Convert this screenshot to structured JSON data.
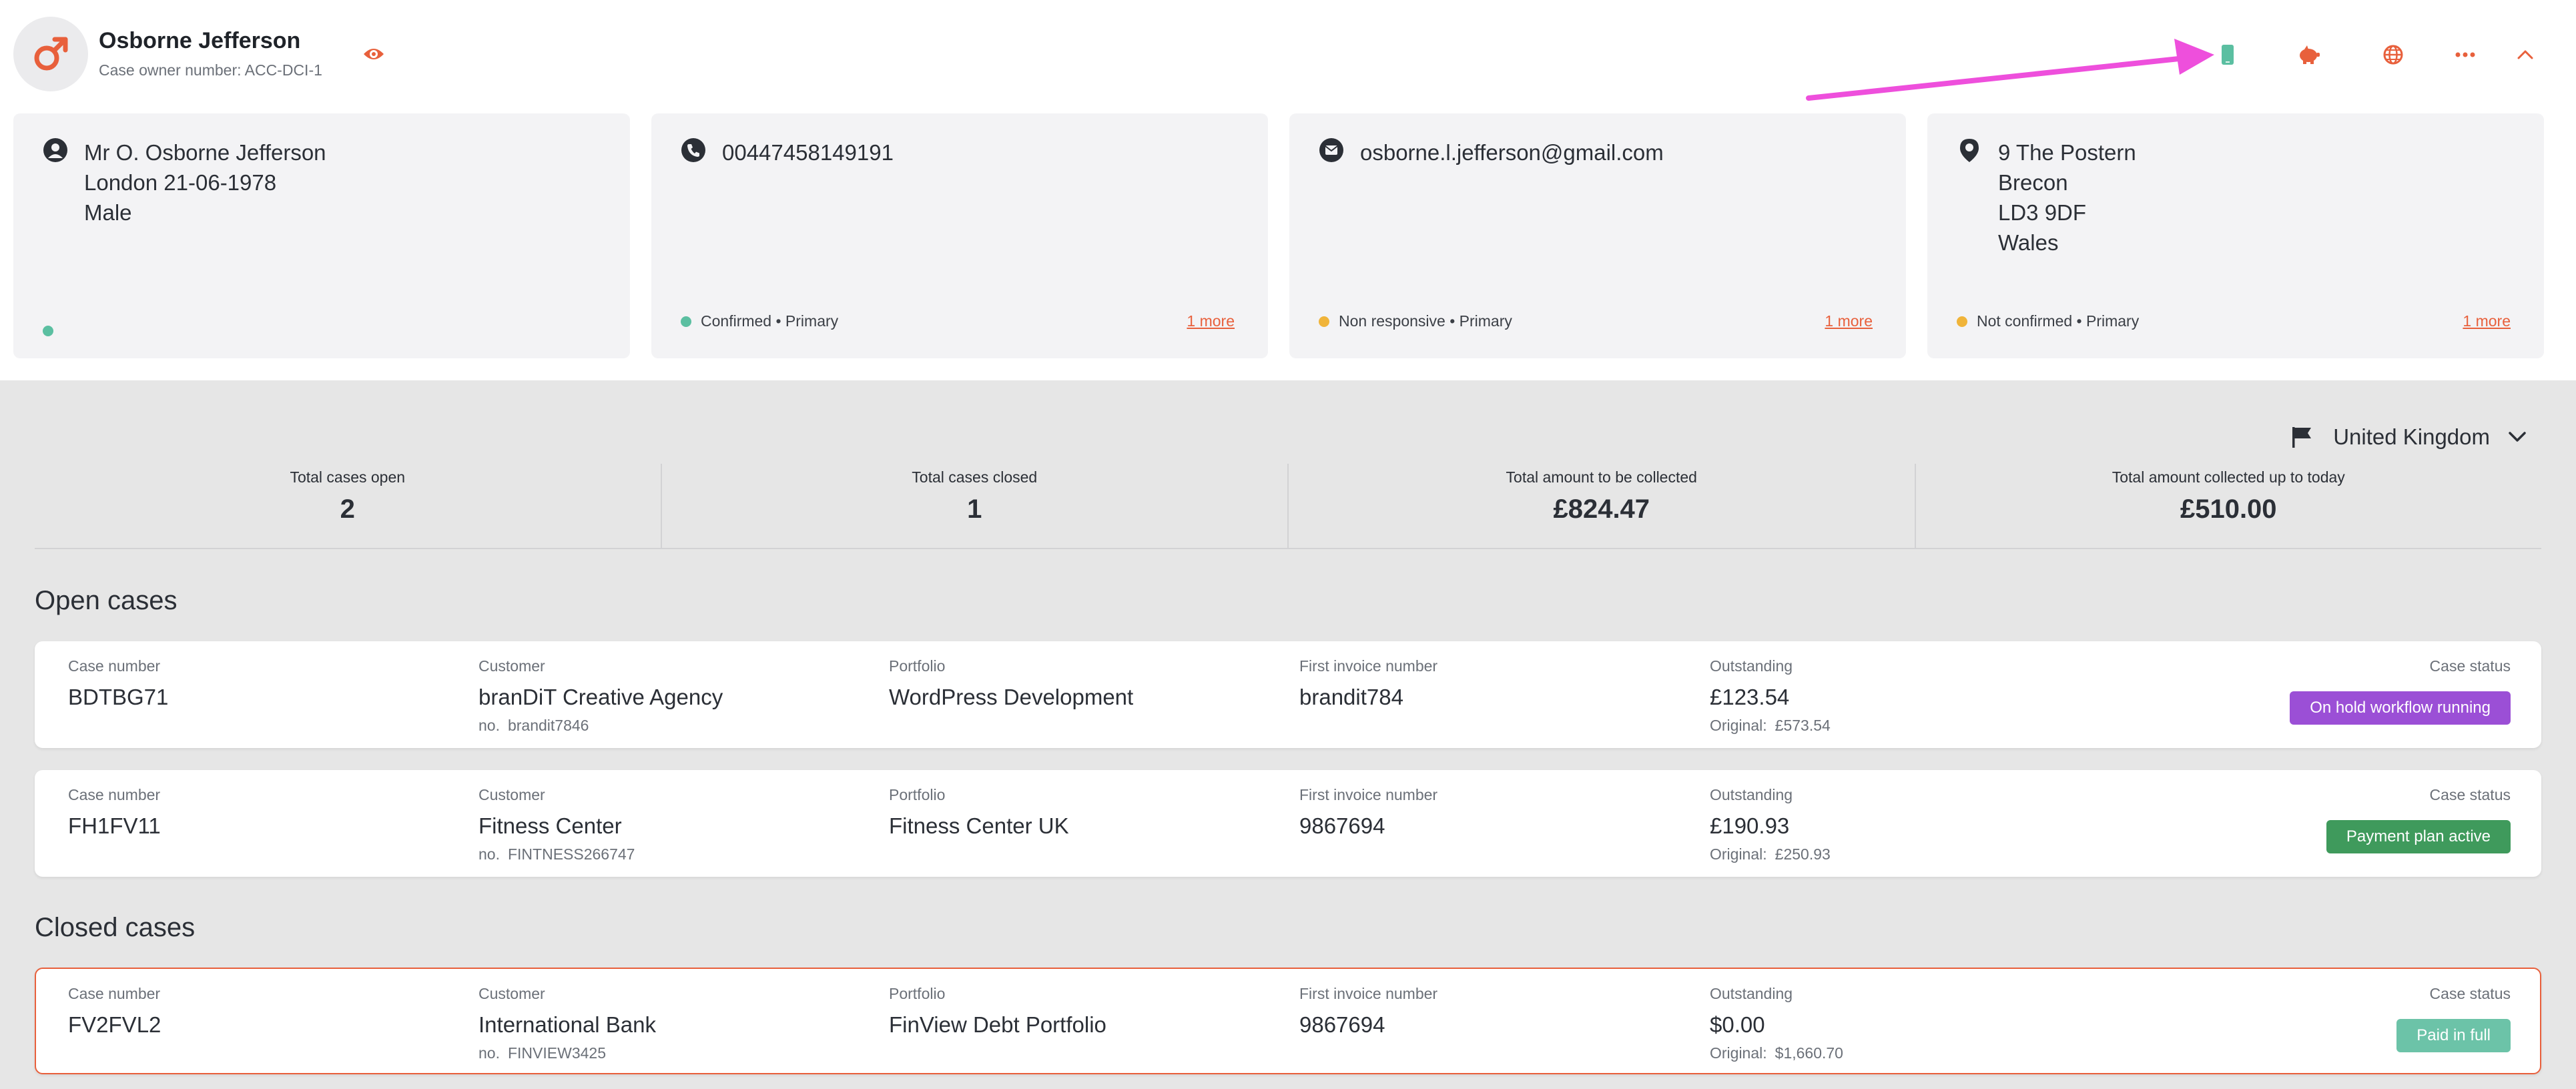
{
  "header": {
    "name": "Osborne Jefferson",
    "owner_number": "Case owner number: ACC-DCI-1",
    "icons": [
      "gender-male-icon",
      "eye-icon",
      "mobile-phone-icon",
      "piggy-bank-icon",
      "globe-icon",
      "more-icon",
      "chevron-up-icon"
    ]
  },
  "cards": {
    "person": {
      "icon": "user-icon",
      "text": "Mr O. Osborne Jefferson\nLondon 21-06-1978\nMale",
      "status_color": "#5bbfa1"
    },
    "phone": {
      "icon": "phone-icon",
      "text": "00447458149191",
      "status": "Confirmed • Primary",
      "status_color": "#5bbfa1",
      "more": "1 more"
    },
    "email": {
      "icon": "mail-icon",
      "text": "osborne.l.jefferson@gmail.com",
      "status": "Non responsive • Primary",
      "status_color": "#f0b43a",
      "more": "1 more"
    },
    "address": {
      "icon": "location-pin-icon",
      "text": "9 The Postern\nBrecon\nLD3 9DF\nWales",
      "status": "Not confirmed • Primary",
      "status_color": "#f0b43a",
      "more": "1 more"
    }
  },
  "country": {
    "label": "United Kingdom",
    "icon": "flag-icon"
  },
  "stats": [
    {
      "label": "Total cases open",
      "value": "2"
    },
    {
      "label": "Total cases closed",
      "value": "1"
    },
    {
      "label": "Total amount to be collected",
      "value": "£824.47"
    },
    {
      "label": "Total amount collected up to today",
      "value": "£510.00"
    }
  ],
  "columns": {
    "case_number": "Case number",
    "customer": "Customer",
    "portfolio": "Portfolio",
    "first_invoice": "First invoice number",
    "outstanding": "Outstanding",
    "case_status": "Case status",
    "no_prefix": "no.",
    "original_prefix": "Original:"
  },
  "open_title": "Open cases",
  "closed_title": "Closed cases",
  "open_cases": [
    {
      "case_number": "BDTBG71",
      "customer": "branDiT Creative Agency",
      "customer_no": "brandit7846",
      "portfolio": "WordPress Development",
      "invoice": "brandit784",
      "outstanding": "£123.54",
      "original": "£573.54",
      "status": "On hold workflow running",
      "status_color": "#9b4fd6"
    },
    {
      "case_number": "FH1FV11",
      "customer": "Fitness Center",
      "customer_no": "FINTNESS266747",
      "portfolio": "Fitness Center UK",
      "invoice": "9867694",
      "outstanding": "£190.93",
      "original": "£250.93",
      "status": "Payment plan active",
      "status_color": "#3f9a5c"
    }
  ],
  "closed_cases": [
    {
      "case_number": "FV2FVL2",
      "customer": "International Bank",
      "customer_no": "FINVIEW3425",
      "portfolio": "FinView Debt Portfolio",
      "invoice": "9867694",
      "outstanding": "$0.00",
      "original": "$1,660.70",
      "status": "Paid in full",
      "status_color": "#6cc3a8"
    }
  ],
  "colors": {
    "accent": "#e8603c",
    "annotation_arrow": "#ee4fdc"
  }
}
